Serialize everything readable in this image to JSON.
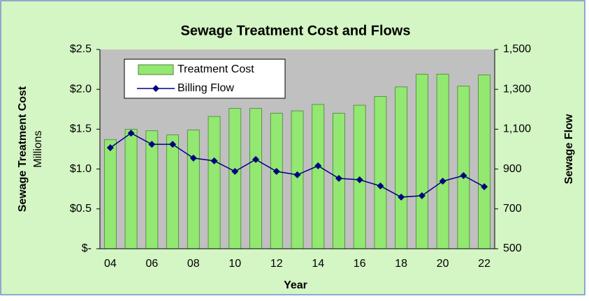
{
  "chart_data": {
    "type": "bar",
    "title": "Sewage Treatment Cost and Flows",
    "x_label": "Year",
    "y_label": "Sewage Treatment Cost",
    "y_unit_label": "Millions",
    "y2_label": "Sewage Flow",
    "categories": [
      "04",
      null,
      "06",
      null,
      "08",
      null,
      "10",
      null,
      "12",
      null,
      "14",
      null,
      "16",
      null,
      "18",
      null,
      "20",
      null,
      "22"
    ],
    "series": [
      {
        "name": "Treatment Cost",
        "type": "bar",
        "color": "#92e870",
        "axis": "y",
        "values": [
          1.37,
          1.5,
          1.48,
          1.43,
          1.49,
          1.66,
          1.76,
          1.76,
          1.7,
          1.73,
          1.81,
          1.7,
          1.8,
          1.91,
          2.03,
          2.19,
          2.19,
          2.04,
          2.18
        ]
      },
      {
        "name": "Billing Flow",
        "type": "line",
        "color": "#000080",
        "axis": "y2",
        "values": [
          1007,
          1080,
          1024,
          1024,
          955,
          941,
          888,
          948,
          888,
          871,
          916,
          853,
          846,
          815,
          759,
          766,
          839,
          867,
          811
        ]
      }
    ],
    "ylim": [
      0,
      2.5
    ],
    "yticks": [
      {
        "value": 0,
        "label": "$-"
      },
      {
        "value": 0.5,
        "label": "$0.5"
      },
      {
        "value": 1,
        "label": "$1.0"
      },
      {
        "value": 1.5,
        "label": "$1.5"
      },
      {
        "value": 2,
        "label": "$2.0"
      },
      {
        "value": 2.5,
        "label": "$2.5"
      }
    ],
    "y2lim": [
      500,
      1500
    ],
    "y2ticks": [
      500,
      700,
      900,
      {
        "value": 1100,
        "label": "1,100"
      },
      {
        "value": 1300,
        "label": "1,300"
      },
      {
        "value": 1500,
        "label": "1,500"
      }
    ],
    "legend": "upper left",
    "grid": false
  }
}
